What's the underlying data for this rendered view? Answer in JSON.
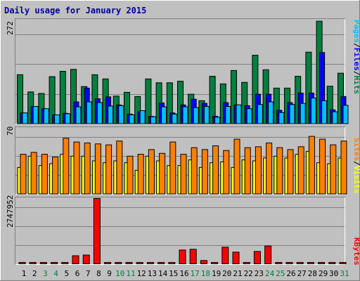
{
  "title": "Daily usage for January 2015",
  "colors": {
    "background": "#c0c0c0",
    "panel": "#c0c0c0",
    "title": "#0000a0",
    "hits": "#008040",
    "files": "#0000ff",
    "pages": "#00c0ff",
    "visits": "#ffff00",
    "sites": "#ff8000",
    "kbytes": "#ff0000",
    "weekend_label": "#008040",
    "weekday_label": "#000000"
  },
  "chart_data": [
    {
      "type": "bar",
      "panel": "traffic",
      "ymax_label": "272",
      "ylim": [
        0,
        272
      ],
      "right_labels": [
        "Pages",
        "Files",
        "Hits"
      ],
      "categories": [
        "1",
        "2",
        "3",
        "4",
        "5",
        "6",
        "7",
        "8",
        "9",
        "10",
        "11",
        "12",
        "13",
        "14",
        "15",
        "16",
        "17",
        "18",
        "19",
        "20",
        "21",
        "22",
        "23",
        "24",
        "25",
        "26",
        "27",
        "28",
        "29",
        "30",
        "31"
      ],
      "series": [
        {
          "name": "Hits",
          "values": [
            128,
            83,
            79,
            123,
            137,
            142,
            97,
            128,
            117,
            72,
            82,
            71,
            117,
            107,
            107,
            111,
            77,
            60,
            124,
            104,
            139,
            108,
            179,
            141,
            93,
            93,
            124,
            187,
            268,
            98,
            132
          ]
        },
        {
          "name": "Files",
          "values": [
            28,
            45,
            39,
            23,
            27,
            57,
            93,
            65,
            70,
            49,
            25,
            31,
            19,
            54,
            28,
            49,
            64,
            53,
            19,
            55,
            49,
            47,
            77,
            77,
            35,
            55,
            80,
            80,
            186,
            36,
            71
          ]
        },
        {
          "name": "Pages",
          "values": [
            28,
            45,
            39,
            23,
            26,
            44,
            57,
            55,
            46,
            47,
            23,
            34,
            18,
            44,
            25,
            44,
            42,
            45,
            17,
            45,
            49,
            39,
            50,
            57,
            29,
            50,
            53,
            67,
            60,
            31,
            48
          ]
        }
      ]
    },
    {
      "type": "bar",
      "panel": "visitors",
      "ymax_label": "70",
      "ylim": [
        0,
        70
      ],
      "right_labels": [
        "Sites",
        "Visits"
      ],
      "categories": [
        "1",
        "2",
        "3",
        "4",
        "5",
        "6",
        "7",
        "8",
        "9",
        "10",
        "11",
        "12",
        "13",
        "14",
        "15",
        "16",
        "17",
        "18",
        "19",
        "20",
        "21",
        "22",
        "23",
        "24",
        "25",
        "26",
        "27",
        "28",
        "29",
        "30",
        "31"
      ],
      "series": [
        {
          "name": "Visits",
          "values": [
            28,
            40,
            30,
            32,
            42,
            40,
            40,
            35,
            33,
            35,
            33,
            25,
            40,
            35,
            30,
            30,
            36,
            28,
            33,
            34,
            28,
            36,
            35,
            38,
            40,
            38,
            42,
            45,
            33,
            32,
            38
          ]
        },
        {
          "name": "Sites",
          "values": [
            42,
            44,
            42,
            39,
            59,
            55,
            54,
            53,
            52,
            56,
            40,
            42,
            47,
            43,
            55,
            42,
            49,
            47,
            51,
            46,
            58,
            49,
            50,
            54,
            49,
            47,
            50,
            61,
            58,
            52,
            56
          ]
        }
      ]
    },
    {
      "type": "bar",
      "panel": "kbytes",
      "ymax_label": "2747952",
      "ylim": [
        0,
        2747952
      ],
      "right_labels": [
        "KBytes"
      ],
      "categories": [
        "1",
        "2",
        "3",
        "4",
        "5",
        "6",
        "7",
        "8",
        "9",
        "10",
        "11",
        "12",
        "13",
        "14",
        "15",
        "16",
        "17",
        "18",
        "19",
        "20",
        "21",
        "22",
        "23",
        "24",
        "25",
        "26",
        "27",
        "28",
        "29",
        "30",
        "31"
      ],
      "series": [
        {
          "name": "KBytes",
          "values": [
            40000,
            40000,
            40000,
            40000,
            40000,
            339000,
            369000,
            2747952,
            40000,
            40000,
            40000,
            40000,
            40000,
            40000,
            40000,
            579000,
            610000,
            139000,
            40000,
            699000,
            489000,
            40000,
            519000,
            749000,
            40000,
            40000,
            40000,
            40000,
            40000,
            40000,
            40000
          ]
        }
      ]
    }
  ],
  "x_labels": [
    {
      "label": "1",
      "weekend": false
    },
    {
      "label": "2",
      "weekend": false
    },
    {
      "label": "3",
      "weekend": true
    },
    {
      "label": "4",
      "weekend": true
    },
    {
      "label": "5",
      "weekend": false
    },
    {
      "label": "6",
      "weekend": false
    },
    {
      "label": "7",
      "weekend": false
    },
    {
      "label": "8",
      "weekend": false
    },
    {
      "label": "9",
      "weekend": false
    },
    {
      "label": "10",
      "weekend": true
    },
    {
      "label": "11",
      "weekend": true
    },
    {
      "label": "12",
      "weekend": false
    },
    {
      "label": "13",
      "weekend": false
    },
    {
      "label": "14",
      "weekend": false
    },
    {
      "label": "15",
      "weekend": false
    },
    {
      "label": "16",
      "weekend": false
    },
    {
      "label": "17",
      "weekend": true
    },
    {
      "label": "18",
      "weekend": true
    },
    {
      "label": "19",
      "weekend": false
    },
    {
      "label": "20",
      "weekend": false
    },
    {
      "label": "21",
      "weekend": false
    },
    {
      "label": "22",
      "weekend": false
    },
    {
      "label": "23",
      "weekend": false
    },
    {
      "label": "24",
      "weekend": true
    },
    {
      "label": "25",
      "weekend": true
    },
    {
      "label": "26",
      "weekend": false
    },
    {
      "label": "27",
      "weekend": false
    },
    {
      "label": "28",
      "weekend": false
    },
    {
      "label": "29",
      "weekend": false
    },
    {
      "label": "30",
      "weekend": false
    },
    {
      "label": "31",
      "weekend": true
    }
  ]
}
